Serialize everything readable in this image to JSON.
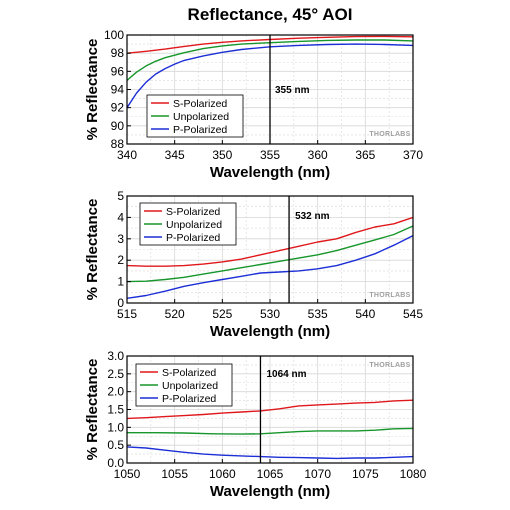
{
  "title": "Reflectance, 45° AOI",
  "watermark": "THORLABS",
  "colors": {
    "s": "#e0181b",
    "u": "#16962b",
    "p": "#1c2fd6",
    "marker": "#000000",
    "grid": "#d7d7d7",
    "axis": "#000000"
  },
  "chart_data": [
    {
      "type": "line",
      "xlabel": "Wavelength (nm)",
      "ylabel": "% Reflectance",
      "xlim": [
        340,
        370
      ],
      "ylim": [
        88,
        100
      ],
      "xticks": [
        340,
        345,
        350,
        355,
        360,
        365,
        370
      ],
      "yticks": [
        88,
        90,
        92,
        94,
        96,
        98,
        100
      ],
      "grid": true,
      "legend": "bottom-left",
      "marker": {
        "x": 355,
        "label": "355 nm"
      },
      "series": [
        {
          "name": "S-Polarized",
          "color_key": "s",
          "points": [
            [
              340,
              98.0
            ],
            [
              342,
              98.2
            ],
            [
              344,
              98.45
            ],
            [
              346,
              98.75
            ],
            [
              348,
              99.0
            ],
            [
              350,
              99.2
            ],
            [
              352,
              99.35
            ],
            [
              355,
              99.5
            ],
            [
              358,
              99.65
            ],
            [
              361,
              99.75
            ],
            [
              364,
              99.82
            ],
            [
              367,
              99.85
            ],
            [
              370,
              99.8
            ]
          ]
        },
        {
          "name": "Unpolarized",
          "color_key": "u",
          "points": [
            [
              340,
              95.0
            ],
            [
              341,
              95.9
            ],
            [
              342,
              96.6
            ],
            [
              343,
              97.1
            ],
            [
              344,
              97.5
            ],
            [
              346,
              98.05
            ],
            [
              348,
              98.5
            ],
            [
              350,
              98.8
            ],
            [
              352,
              99.0
            ],
            [
              355,
              99.15
            ],
            [
              358,
              99.3
            ],
            [
              361,
              99.4
            ],
            [
              364,
              99.45
            ],
            [
              367,
              99.45
            ],
            [
              370,
              99.35
            ]
          ]
        },
        {
          "name": "P-Polarized",
          "color_key": "p",
          "points": [
            [
              340,
              92.0
            ],
            [
              341,
              93.6
            ],
            [
              342,
              94.8
            ],
            [
              343,
              95.7
            ],
            [
              344,
              96.3
            ],
            [
              345,
              96.8
            ],
            [
              346,
              97.2
            ],
            [
              348,
              97.7
            ],
            [
              350,
              98.1
            ],
            [
              352,
              98.4
            ],
            [
              355,
              98.7
            ],
            [
              358,
              98.85
            ],
            [
              361,
              98.95
            ],
            [
              364,
              99.0
            ],
            [
              367,
              98.95
            ],
            [
              370,
              98.85
            ]
          ]
        }
      ]
    },
    {
      "type": "line",
      "xlabel": "Wavelength (nm)",
      "ylabel": "% Reflectance",
      "xlim": [
        515,
        545
      ],
      "ylim": [
        0,
        5
      ],
      "xticks": [
        515,
        520,
        525,
        530,
        535,
        540,
        545
      ],
      "yticks": [
        0,
        1,
        2,
        3,
        4,
        5
      ],
      "grid": true,
      "legend": "top-left",
      "marker": {
        "x": 532,
        "label": "532 nm"
      },
      "series": [
        {
          "name": "S-Polarized",
          "color_key": "s",
          "points": [
            [
              515,
              1.75
            ],
            [
              517,
              1.72
            ],
            [
              519,
              1.72
            ],
            [
              521,
              1.75
            ],
            [
              523,
              1.82
            ],
            [
              525,
              1.92
            ],
            [
              527,
              2.05
            ],
            [
              529,
              2.25
            ],
            [
              531,
              2.45
            ],
            [
              533,
              2.65
            ],
            [
              535,
              2.85
            ],
            [
              537,
              3.0
            ],
            [
              539,
              3.3
            ],
            [
              541,
              3.55
            ],
            [
              543,
              3.7
            ],
            [
              545,
              4.0
            ]
          ]
        },
        {
          "name": "Unpolarized",
          "color_key": "u",
          "points": [
            [
              515,
              1.0
            ],
            [
              517,
              1.02
            ],
            [
              519,
              1.1
            ],
            [
              521,
              1.2
            ],
            [
              523,
              1.35
            ],
            [
              525,
              1.5
            ],
            [
              527,
              1.65
            ],
            [
              529,
              1.8
            ],
            [
              531,
              1.95
            ],
            [
              533,
              2.1
            ],
            [
              535,
              2.25
            ],
            [
              537,
              2.45
            ],
            [
              539,
              2.7
            ],
            [
              541,
              2.95
            ],
            [
              543,
              3.2
            ],
            [
              545,
              3.6
            ]
          ]
        },
        {
          "name": "P-Polarized",
          "color_key": "p",
          "points": [
            [
              515,
              0.22
            ],
            [
              517,
              0.35
            ],
            [
              519,
              0.55
            ],
            [
              521,
              0.78
            ],
            [
              523,
              0.95
            ],
            [
              525,
              1.1
            ],
            [
              527,
              1.25
            ],
            [
              529,
              1.4
            ],
            [
              531,
              1.45
            ],
            [
              533,
              1.5
            ],
            [
              535,
              1.6
            ],
            [
              537,
              1.75
            ],
            [
              539,
              2.0
            ],
            [
              541,
              2.3
            ],
            [
              543,
              2.7
            ],
            [
              545,
              3.15
            ]
          ]
        }
      ]
    },
    {
      "type": "line",
      "xlabel": "Wavelength (nm)",
      "ylabel": "% Reflectance",
      "xlim": [
        1050,
        1080
      ],
      "ylim": [
        0,
        3.0
      ],
      "xticks": [
        1050,
        1055,
        1060,
        1065,
        1070,
        1075,
        1080
      ],
      "yticks": [
        0.0,
        0.5,
        1.0,
        1.5,
        2.0,
        2.5,
        3.0
      ],
      "grid": true,
      "legend": "top-left",
      "marker": {
        "x": 1064,
        "label": "1064 nm"
      },
      "series": [
        {
          "name": "S-Polarized",
          "color_key": "s",
          "points": [
            [
              1050,
              1.25
            ],
            [
              1052,
              1.27
            ],
            [
              1054,
              1.3
            ],
            [
              1056,
              1.33
            ],
            [
              1058,
              1.36
            ],
            [
              1060,
              1.4
            ],
            [
              1062,
              1.43
            ],
            [
              1064,
              1.46
            ],
            [
              1066,
              1.52
            ],
            [
              1068,
              1.6
            ],
            [
              1070,
              1.63
            ],
            [
              1072,
              1.65
            ],
            [
              1074,
              1.68
            ],
            [
              1076,
              1.7
            ],
            [
              1078,
              1.74
            ],
            [
              1080,
              1.76
            ]
          ]
        },
        {
          "name": "Unpolarized",
          "color_key": "u",
          "points": [
            [
              1050,
              0.85
            ],
            [
              1053,
              0.85
            ],
            [
              1056,
              0.84
            ],
            [
              1059,
              0.82
            ],
            [
              1062,
              0.81
            ],
            [
              1064,
              0.82
            ],
            [
              1066,
              0.85
            ],
            [
              1068,
              0.88
            ],
            [
              1070,
              0.9
            ],
            [
              1072,
              0.9
            ],
            [
              1074,
              0.9
            ],
            [
              1076,
              0.92
            ],
            [
              1078,
              0.96
            ],
            [
              1080,
              0.97
            ]
          ]
        },
        {
          "name": "P-Polarized",
          "color_key": "p",
          "points": [
            [
              1050,
              0.45
            ],
            [
              1052,
              0.42
            ],
            [
              1054,
              0.36
            ],
            [
              1056,
              0.3
            ],
            [
              1058,
              0.25
            ],
            [
              1060,
              0.22
            ],
            [
              1062,
              0.2
            ],
            [
              1064,
              0.18
            ],
            [
              1066,
              0.16
            ],
            [
              1068,
              0.15
            ],
            [
              1070,
              0.14
            ],
            [
              1072,
              0.13
            ],
            [
              1074,
              0.14
            ],
            [
              1076,
              0.14
            ],
            [
              1078,
              0.16
            ],
            [
              1080,
              0.18
            ]
          ]
        }
      ]
    }
  ]
}
